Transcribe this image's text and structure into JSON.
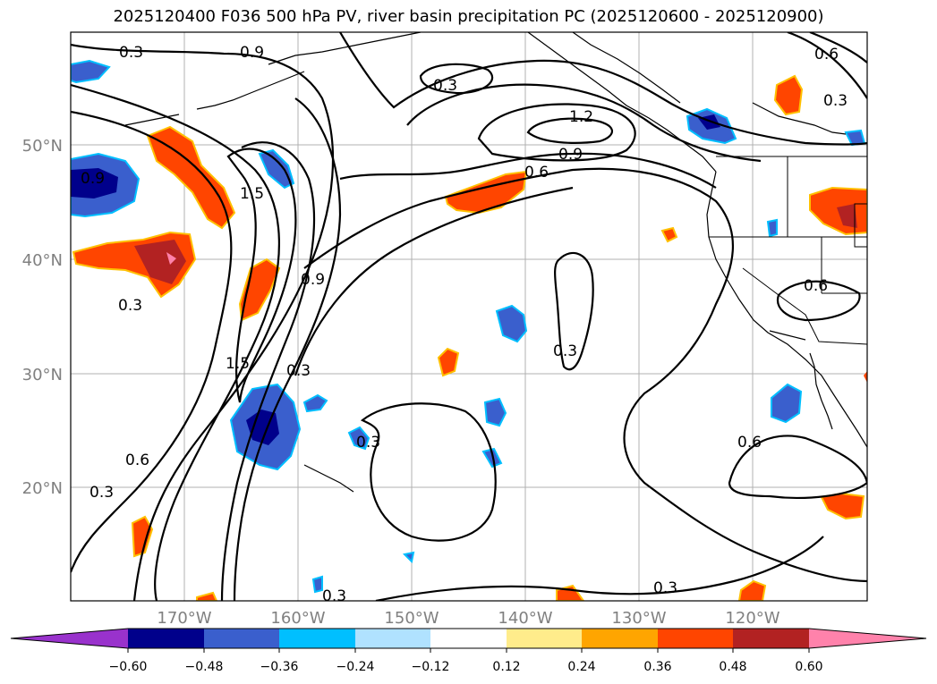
{
  "title": "2025120400 F036 500 hPa PV, river basin precipitation PC (2025120600 - 2025120900)",
  "map": {
    "lon_labels": [
      "170°W",
      "160°W",
      "150°W",
      "140°W",
      "130°W",
      "120°W"
    ],
    "lat_labels": [
      "50°N",
      "40°N",
      "30°N",
      "20°N"
    ],
    "contour_labels": [
      "0.3",
      "0.9",
      "0.3",
      "1.2",
      "0.9",
      "0.6",
      "1.5",
      "0.9",
      "0.3",
      "1.5",
      "0.3",
      "0.6",
      "0.3",
      "0.3",
      "0.6",
      "0.6",
      "0.3",
      "0.3",
      "0.3",
      "0.6",
      "0.3",
      "0.9"
    ]
  },
  "colorbar": {
    "colors": [
      "#9932cc",
      "#00008b",
      "#3a5fcd",
      "#00bfff",
      "#b0e2ff",
      "#ffffff",
      "#ffec8b",
      "#ffa500",
      "#ff4500",
      "#b22222",
      "#ff82ab"
    ],
    "tick_labels": [
      "−0.60",
      "−0.48",
      "−0.36",
      "−0.24",
      "−0.12",
      "0.12",
      "0.24",
      "0.36",
      "0.48",
      "0.60"
    ]
  }
}
